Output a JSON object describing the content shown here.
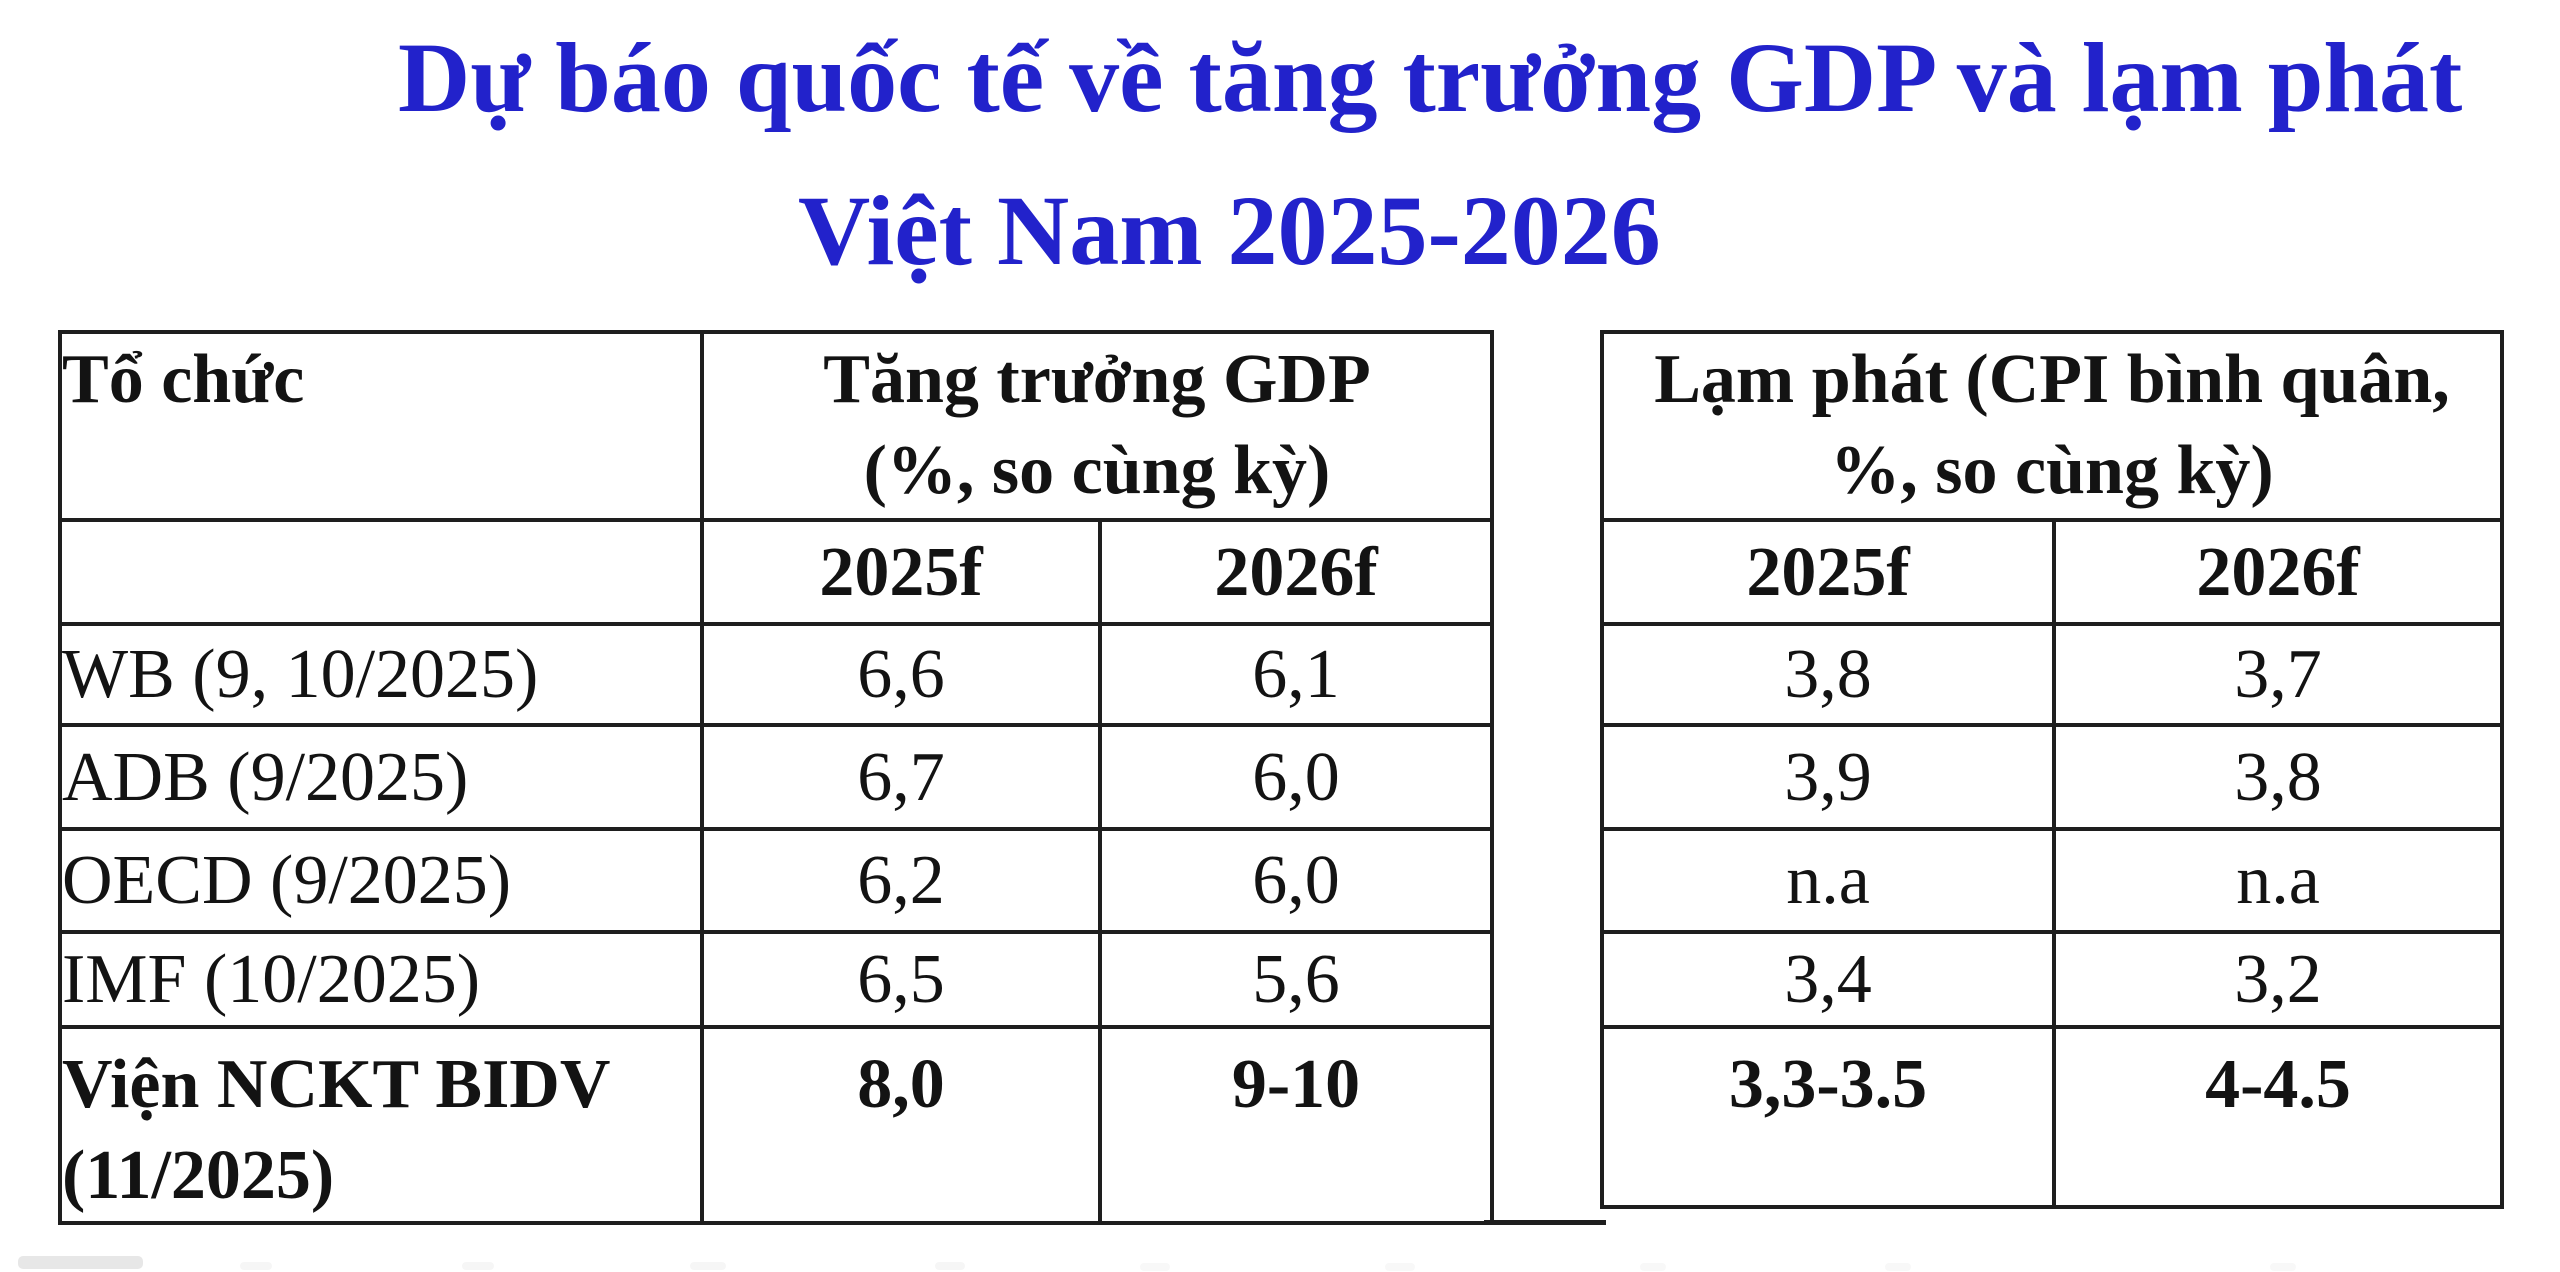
{
  "title": {
    "line1": "Dự báo quốc tế về tăng trưởng GDP và lạm phát",
    "line2": "Việt Nam 2025-2026",
    "color": "#2222CB"
  },
  "table": {
    "org_header": "Tổ chức",
    "gdp_header": {
      "line1": "Tăng trưởng GDP",
      "line2": "(%, so cùng kỳ)"
    },
    "cpi_header": {
      "line1": "Lạm phát (CPI bình quân,",
      "line2": "%, so cùng kỳ)"
    },
    "year_headers": [
      "2025f",
      "2026f"
    ],
    "rows": [
      {
        "org": "WB (9, 10/2025)",
        "gdp_2025f": "6,6",
        "gdp_2026f": "6,1",
        "cpi_2025f": "3,8",
        "cpi_2026f": "3,7"
      },
      {
        "org": "ADB (9/2025)",
        "gdp_2025f": "6,7",
        "gdp_2026f": "6,0",
        "cpi_2025f": "3,9",
        "cpi_2026f": "3,8"
      },
      {
        "org": "OECD (9/2025)",
        "gdp_2025f": "6,2",
        "gdp_2026f": "6,0",
        "cpi_2025f": "n.a",
        "cpi_2026f": "n.a"
      },
      {
        "org": "IMF (10/2025)",
        "gdp_2025f": "6,5",
        "gdp_2026f": "5,6",
        "cpi_2025f": "3,4",
        "cpi_2026f": "3,2"
      },
      {
        "org": "Viện NCKT BIDV (11/2025)",
        "gdp_2025f": "8,0",
        "gdp_2026f": "9-10",
        "cpi_2025f": "3,3-3.5",
        "cpi_2026f": "4-4.5"
      }
    ]
  },
  "colors": {
    "title_blue": "#2222CB",
    "table_border": "#1e1e1e",
    "text": "#131313",
    "background": "#ffffff"
  }
}
